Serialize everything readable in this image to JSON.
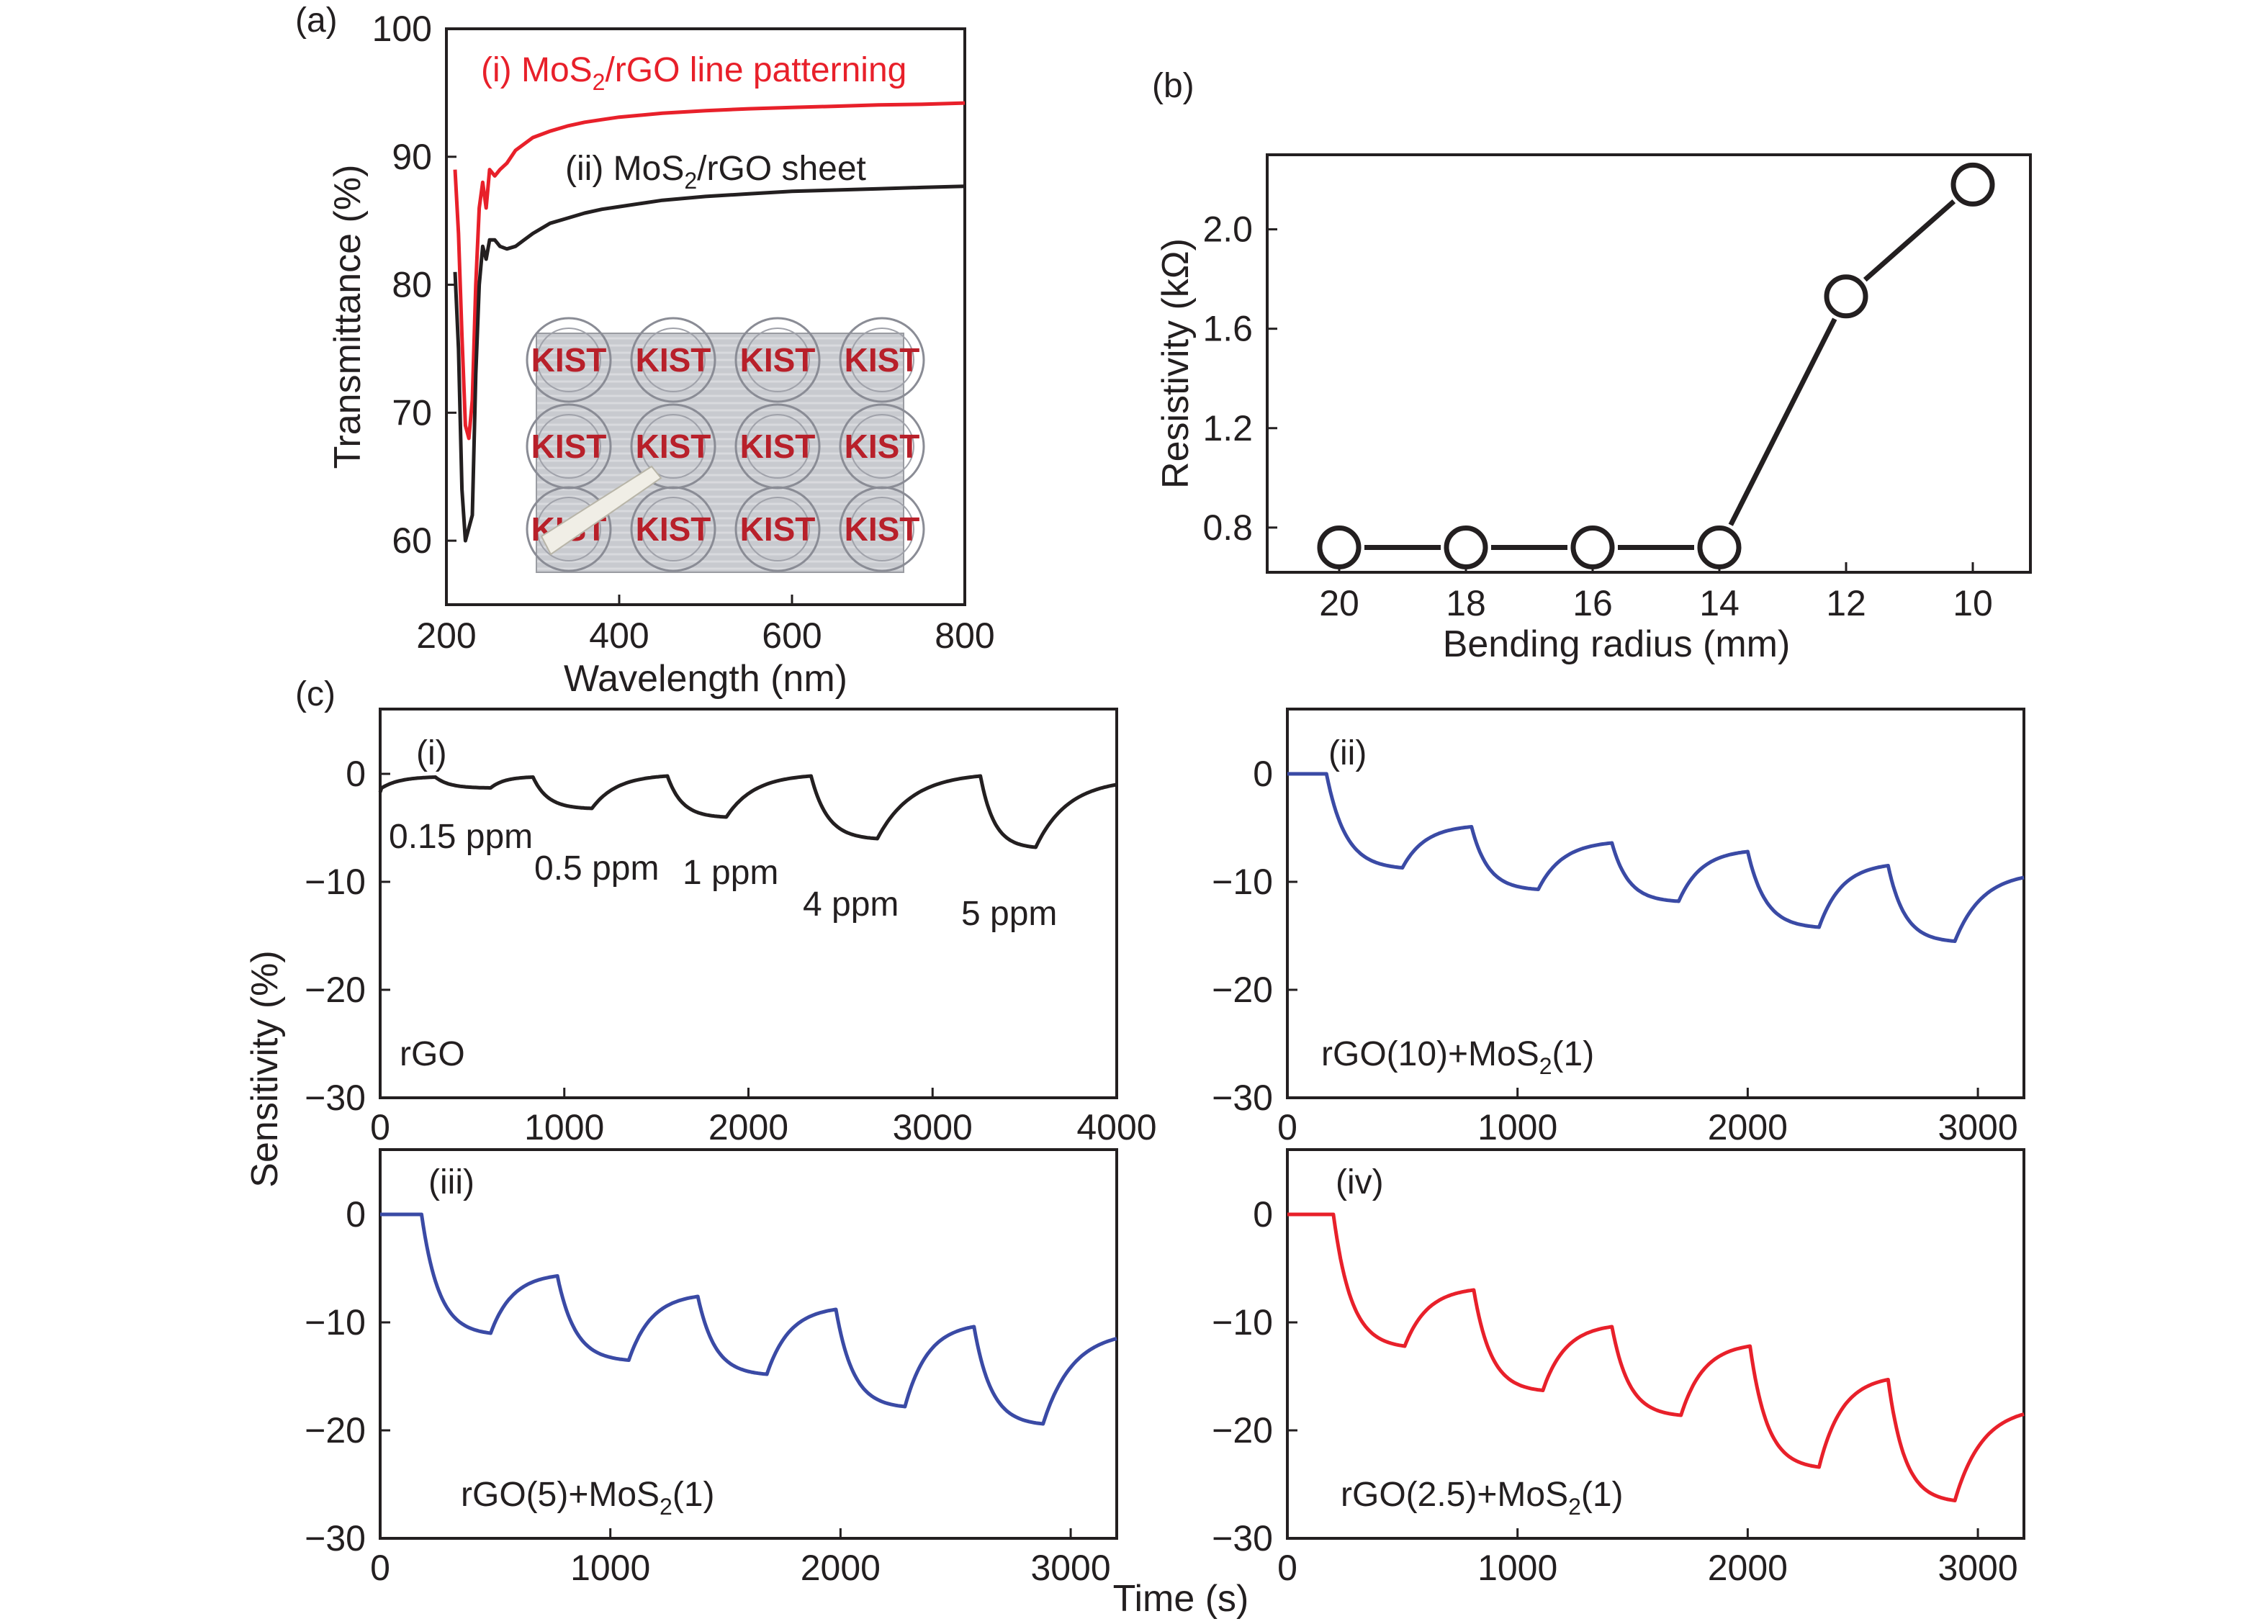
{
  "figure": {
    "panel_a_label": "(a)",
    "panel_b_label": "(b)",
    "panel_c_label": "(c)",
    "shared_ylabel_c": "Sensitivity (%)",
    "shared_xlabel_c": "Time (s)",
    "photo_inset": {
      "description_text": "KIST",
      "caption": ""
    }
  },
  "colors": {
    "axis": "#231f20",
    "red": "#e8202a",
    "black": "#231f20",
    "blue": "#3a4aa5",
    "photo_bg": "#c9cbd0",
    "logo_red": "#b8202a"
  },
  "chart_data": [
    {
      "id": "a",
      "type": "line",
      "title": "",
      "xlabel": "Wavelength (nm)",
      "ylabel": "Transmittance (%)",
      "xlim": [
        200,
        800
      ],
      "ylim": [
        55,
        100
      ],
      "xticks": [
        200,
        400,
        600,
        800
      ],
      "yticks": [
        60,
        70,
        80,
        90,
        100
      ],
      "series": [
        {
          "name": "(i) MoS2/rGO line patterning",
          "label_prefix": "(i) MoS",
          "label_sub": "2",
          "label_suffix": "/rGO line patterning",
          "color": "red",
          "x": [
            210,
            214,
            218,
            222,
            226,
            230,
            234,
            238,
            242,
            246,
            250,
            256,
            262,
            270,
            280,
            290,
            300,
            320,
            340,
            360,
            380,
            400,
            450,
            500,
            550,
            600,
            650,
            700,
            750,
            800
          ],
          "y": [
            89,
            84,
            76,
            69,
            68,
            71,
            80,
            86,
            88,
            86,
            89,
            88.5,
            89,
            89.5,
            90.5,
            91,
            91.5,
            92,
            92.4,
            92.7,
            92.9,
            93.1,
            93.4,
            93.6,
            93.75,
            93.85,
            93.95,
            94.05,
            94.1,
            94.2
          ]
        },
        {
          "name": "(ii) MoS2/rGO sheet",
          "label_prefix": "(ii) MoS",
          "label_sub": "2",
          "label_suffix": "/rGO sheet",
          "color": "black",
          "x": [
            210,
            214,
            218,
            222,
            226,
            230,
            234,
            238,
            242,
            246,
            250,
            256,
            262,
            270,
            280,
            290,
            300,
            320,
            340,
            360,
            380,
            400,
            450,
            500,
            550,
            600,
            650,
            700,
            750,
            800
          ],
          "y": [
            81,
            75,
            64,
            60,
            61,
            62,
            73,
            80,
            83,
            82,
            83.5,
            83.5,
            83,
            82.8,
            83,
            83.5,
            84,
            84.8,
            85.2,
            85.6,
            85.9,
            86.1,
            86.6,
            86.9,
            87.1,
            87.3,
            87.4,
            87.5,
            87.6,
            87.7
          ]
        }
      ]
    },
    {
      "id": "b",
      "type": "line",
      "title": "",
      "xlabel": "Bending radius (mm)",
      "ylabel": "Resistivity (kΩ)",
      "categories": [
        "20",
        "18",
        "16",
        "14",
        "12",
        "10"
      ],
      "values": [
        0.72,
        0.72,
        0.72,
        0.72,
        1.73,
        2.18
      ],
      "ylim": [
        0.62,
        2.3
      ],
      "yticks": [
        0.8,
        1.2,
        1.6,
        2.0
      ],
      "ytick_labels": [
        "0.8",
        "1.2",
        "1.6",
        "2.0"
      ]
    },
    {
      "id": "c-i",
      "type": "line",
      "panel_label": "(i)",
      "legend_text": "rGO",
      "xlim": [
        0,
        4000
      ],
      "ylim": [
        -30,
        6
      ],
      "xticks": [
        0,
        1000,
        2000,
        3000,
        4000
      ],
      "yticks": [
        0,
        -10,
        -20,
        -30
      ],
      "ytick_labels": [
        "0",
        "−10",
        "−20",
        "−30"
      ],
      "color": "black",
      "start": 0,
      "recovery_baseline": 0,
      "cycles": [
        {
          "t_on": 300,
          "t_off": 600,
          "v_on": -0.3,
          "v_off": -1.3
        },
        {
          "t_on": 830,
          "t_off": 1150,
          "v_on": -0.3,
          "v_off": -3.2
        },
        {
          "t_on": 1560,
          "t_off": 1880,
          "v_on": -0.2,
          "v_off": -4.0
        },
        {
          "t_on": 2340,
          "t_off": 2700,
          "v_on": -0.2,
          "v_off": -6.0
        },
        {
          "t_on": 3260,
          "t_off": 3560,
          "v_on": -0.2,
          "v_off": -6.8
        }
      ],
      "t_end": 4000,
      "v_end": -1.0,
      "annotations": [
        "0.15 ppm",
        "0.5 ppm",
        "1 ppm",
        "4 ppm",
        "5 ppm"
      ]
    },
    {
      "id": "c-ii",
      "type": "line",
      "panel_label": "(ii)",
      "legend_prefix": "rGO(10)+MoS",
      "legend_sub": "2",
      "legend_suffix": "(1)",
      "xlim": [
        0,
        3200
      ],
      "ylim": [
        -30,
        6
      ],
      "xticks": [
        0,
        1000,
        2000,
        3000
      ],
      "yticks": [
        0,
        -10,
        -20,
        -30
      ],
      "ytick_labels": [
        "0",
        "−10",
        "−20",
        "−30"
      ],
      "color": "blue",
      "cycles": [
        {
          "t_on": 170,
          "t_off": 500,
          "v_on": 0,
          "v_off": -8.7
        },
        {
          "t_on": 800,
          "t_off": 1090,
          "v_on": -4.9,
          "v_off": -10.7
        },
        {
          "t_on": 1410,
          "t_off": 1700,
          "v_on": -6.4,
          "v_off": -11.8
        },
        {
          "t_on": 2000,
          "t_off": 2310,
          "v_on": -7.2,
          "v_off": -14.2
        },
        {
          "t_on": 2610,
          "t_off": 2900,
          "v_on": -8.5,
          "v_off": -15.5
        }
      ],
      "t_end": 3200,
      "v_end": -9.6
    },
    {
      "id": "c-iii",
      "type": "line",
      "panel_label": "(iii)",
      "legend_prefix": "rGO(5)+MoS",
      "legend_sub": "2",
      "legend_suffix": "(1)",
      "xlim": [
        0,
        3200
      ],
      "ylim": [
        -30,
        6
      ],
      "xticks": [
        0,
        1000,
        2000,
        3000
      ],
      "yticks": [
        0,
        -10,
        -20,
        -30
      ],
      "ytick_labels": [
        "0",
        "−10",
        "−20",
        "−30"
      ],
      "color": "blue",
      "cycles": [
        {
          "t_on": 180,
          "t_off": 480,
          "v_on": 0,
          "v_off": -11.0
        },
        {
          "t_on": 770,
          "t_off": 1080,
          "v_on": -5.7,
          "v_off": -13.5
        },
        {
          "t_on": 1380,
          "t_off": 1680,
          "v_on": -7.6,
          "v_off": -14.8
        },
        {
          "t_on": 1980,
          "t_off": 2280,
          "v_on": -8.8,
          "v_off": -17.8
        },
        {
          "t_on": 2580,
          "t_off": 2880,
          "v_on": -10.4,
          "v_off": -19.4
        }
      ],
      "t_end": 3200,
      "v_end": -11.5
    },
    {
      "id": "c-iv",
      "type": "line",
      "panel_label": "(iv)",
      "legend_prefix": "rGO(2.5)+MoS",
      "legend_sub": "2",
      "legend_suffix": "(1)",
      "xlim": [
        0,
        3200
      ],
      "ylim": [
        -30,
        6
      ],
      "xticks": [
        0,
        1000,
        2000,
        3000
      ],
      "yticks": [
        0,
        -10,
        -20,
        -30
      ],
      "ytick_labels": [
        "0",
        "−10",
        "−20",
        "−30"
      ],
      "color": "red",
      "cycles": [
        {
          "t_on": 200,
          "t_off": 510,
          "v_on": 0,
          "v_off": -12.2
        },
        {
          "t_on": 810,
          "t_off": 1110,
          "v_on": -7.0,
          "v_off": -16.3
        },
        {
          "t_on": 1410,
          "t_off": 1710,
          "v_on": -10.4,
          "v_off": -18.6
        },
        {
          "t_on": 2010,
          "t_off": 2310,
          "v_on": -12.2,
          "v_off": -23.4
        },
        {
          "t_on": 2610,
          "t_off": 2900,
          "v_on": -15.3,
          "v_off": -26.5
        }
      ],
      "t_end": 3200,
      "v_end": -18.5
    }
  ]
}
